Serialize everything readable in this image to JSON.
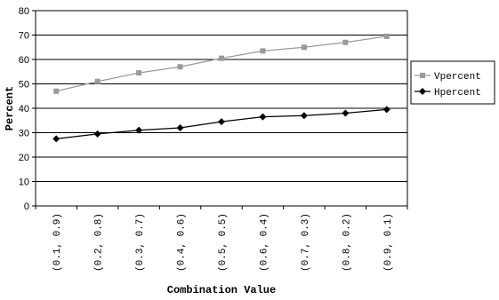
{
  "chart_data": {
    "type": "line",
    "title": "",
    "xlabel": "Combination Value",
    "ylabel": "Percent",
    "ylim": [
      0,
      80
    ],
    "yticks": [
      0,
      10,
      20,
      30,
      40,
      50,
      60,
      70,
      80
    ],
    "grid": "horizontal",
    "legend_position": "right",
    "categories": [
      "(0.1, 0.9)",
      "(0.2, 0.8)",
      "(0.3, 0.7)",
      "(0.4, 0.6)",
      "(0.5, 0.5)",
      "(0.6, 0.4)",
      "(0.7, 0.3)",
      "(0.8, 0.2)",
      "(0.9, 0.1)"
    ],
    "series": [
      {
        "name": "Vpercent",
        "marker": "square",
        "color": "#9a9a9a",
        "values": [
          47,
          51,
          54.5,
          57,
          60.5,
          63.5,
          65,
          67,
          69.5
        ]
      },
      {
        "name": "Hpercent",
        "marker": "diamond",
        "color": "#000000",
        "values": [
          27.5,
          29.5,
          31,
          32,
          34.5,
          36.5,
          37,
          38,
          39.5
        ]
      }
    ]
  }
}
